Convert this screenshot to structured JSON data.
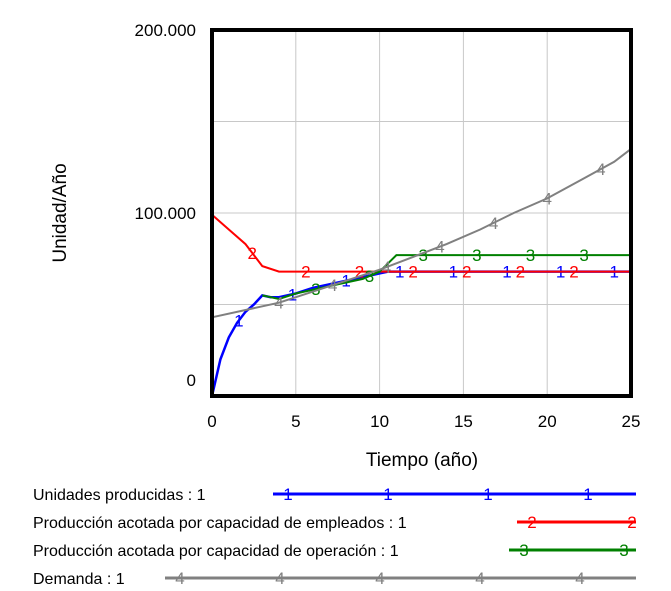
{
  "chart_data": {
    "type": "line",
    "xlabel": "Tiempo (año)",
    "ylabel": "Unidad/Año",
    "xlim": [
      0,
      25
    ],
    "ylim": [
      0,
      200000
    ],
    "x_ticks": [
      0,
      5,
      10,
      15,
      20,
      25
    ],
    "x_tick_labels": [
      "0",
      "5",
      "10",
      "15",
      "20",
      "25"
    ],
    "y_ticks": [
      0,
      100000,
      200000
    ],
    "y_tick_labels": [
      "0",
      "100.000",
      "200.000"
    ],
    "grid": true,
    "legend_placement": "bottom",
    "series": [
      {
        "name": "Unidades producidas : 1",
        "marker": "1",
        "color": "#0000ff",
        "x": [
          0,
          0.5,
          1,
          1.5,
          2,
          2.5,
          3,
          3.5,
          4,
          5,
          6,
          7,
          8,
          9,
          10,
          10.5,
          11,
          12,
          15,
          18,
          20,
          25
        ],
        "y": [
          0,
          20000,
          32000,
          40000,
          46000,
          50000,
          55000,
          54000,
          54000,
          56000,
          59000,
          61000,
          63000,
          65000,
          67000,
          68000,
          68000,
          68000,
          68000,
          68000,
          68000,
          68000
        ]
      },
      {
        "name": "Producción acotada por capacidad de empleados : 1",
        "marker": "2",
        "color": "#ff0000",
        "x": [
          0,
          1,
          2,
          3,
          4,
          5,
          8,
          10,
          15,
          20,
          25
        ],
        "y": [
          99000,
          91000,
          83000,
          71000,
          68000,
          68000,
          68000,
          68000,
          68000,
          68000,
          68000
        ]
      },
      {
        "name": "Producción acotada por capacidad de operación : 1",
        "marker": "3",
        "color": "#008000",
        "x": [
          3,
          4,
          5,
          7,
          9,
          10,
          11,
          15,
          20,
          25
        ],
        "y": [
          55000,
          53000,
          56000,
          60000,
          64000,
          68000,
          77000,
          77000,
          77000,
          77000
        ]
      },
      {
        "name": "Demanda : 1",
        "marker": "4",
        "color": "#808080",
        "x": [
          0,
          2,
          4,
          6,
          8,
          10,
          12,
          14,
          16,
          18,
          20,
          22,
          24,
          25
        ],
        "y": [
          43000,
          47000,
          51000,
          57000,
          63000,
          69000,
          76000,
          83000,
          91000,
          100000,
          108000,
          118000,
          128000,
          135000
        ]
      }
    ]
  }
}
